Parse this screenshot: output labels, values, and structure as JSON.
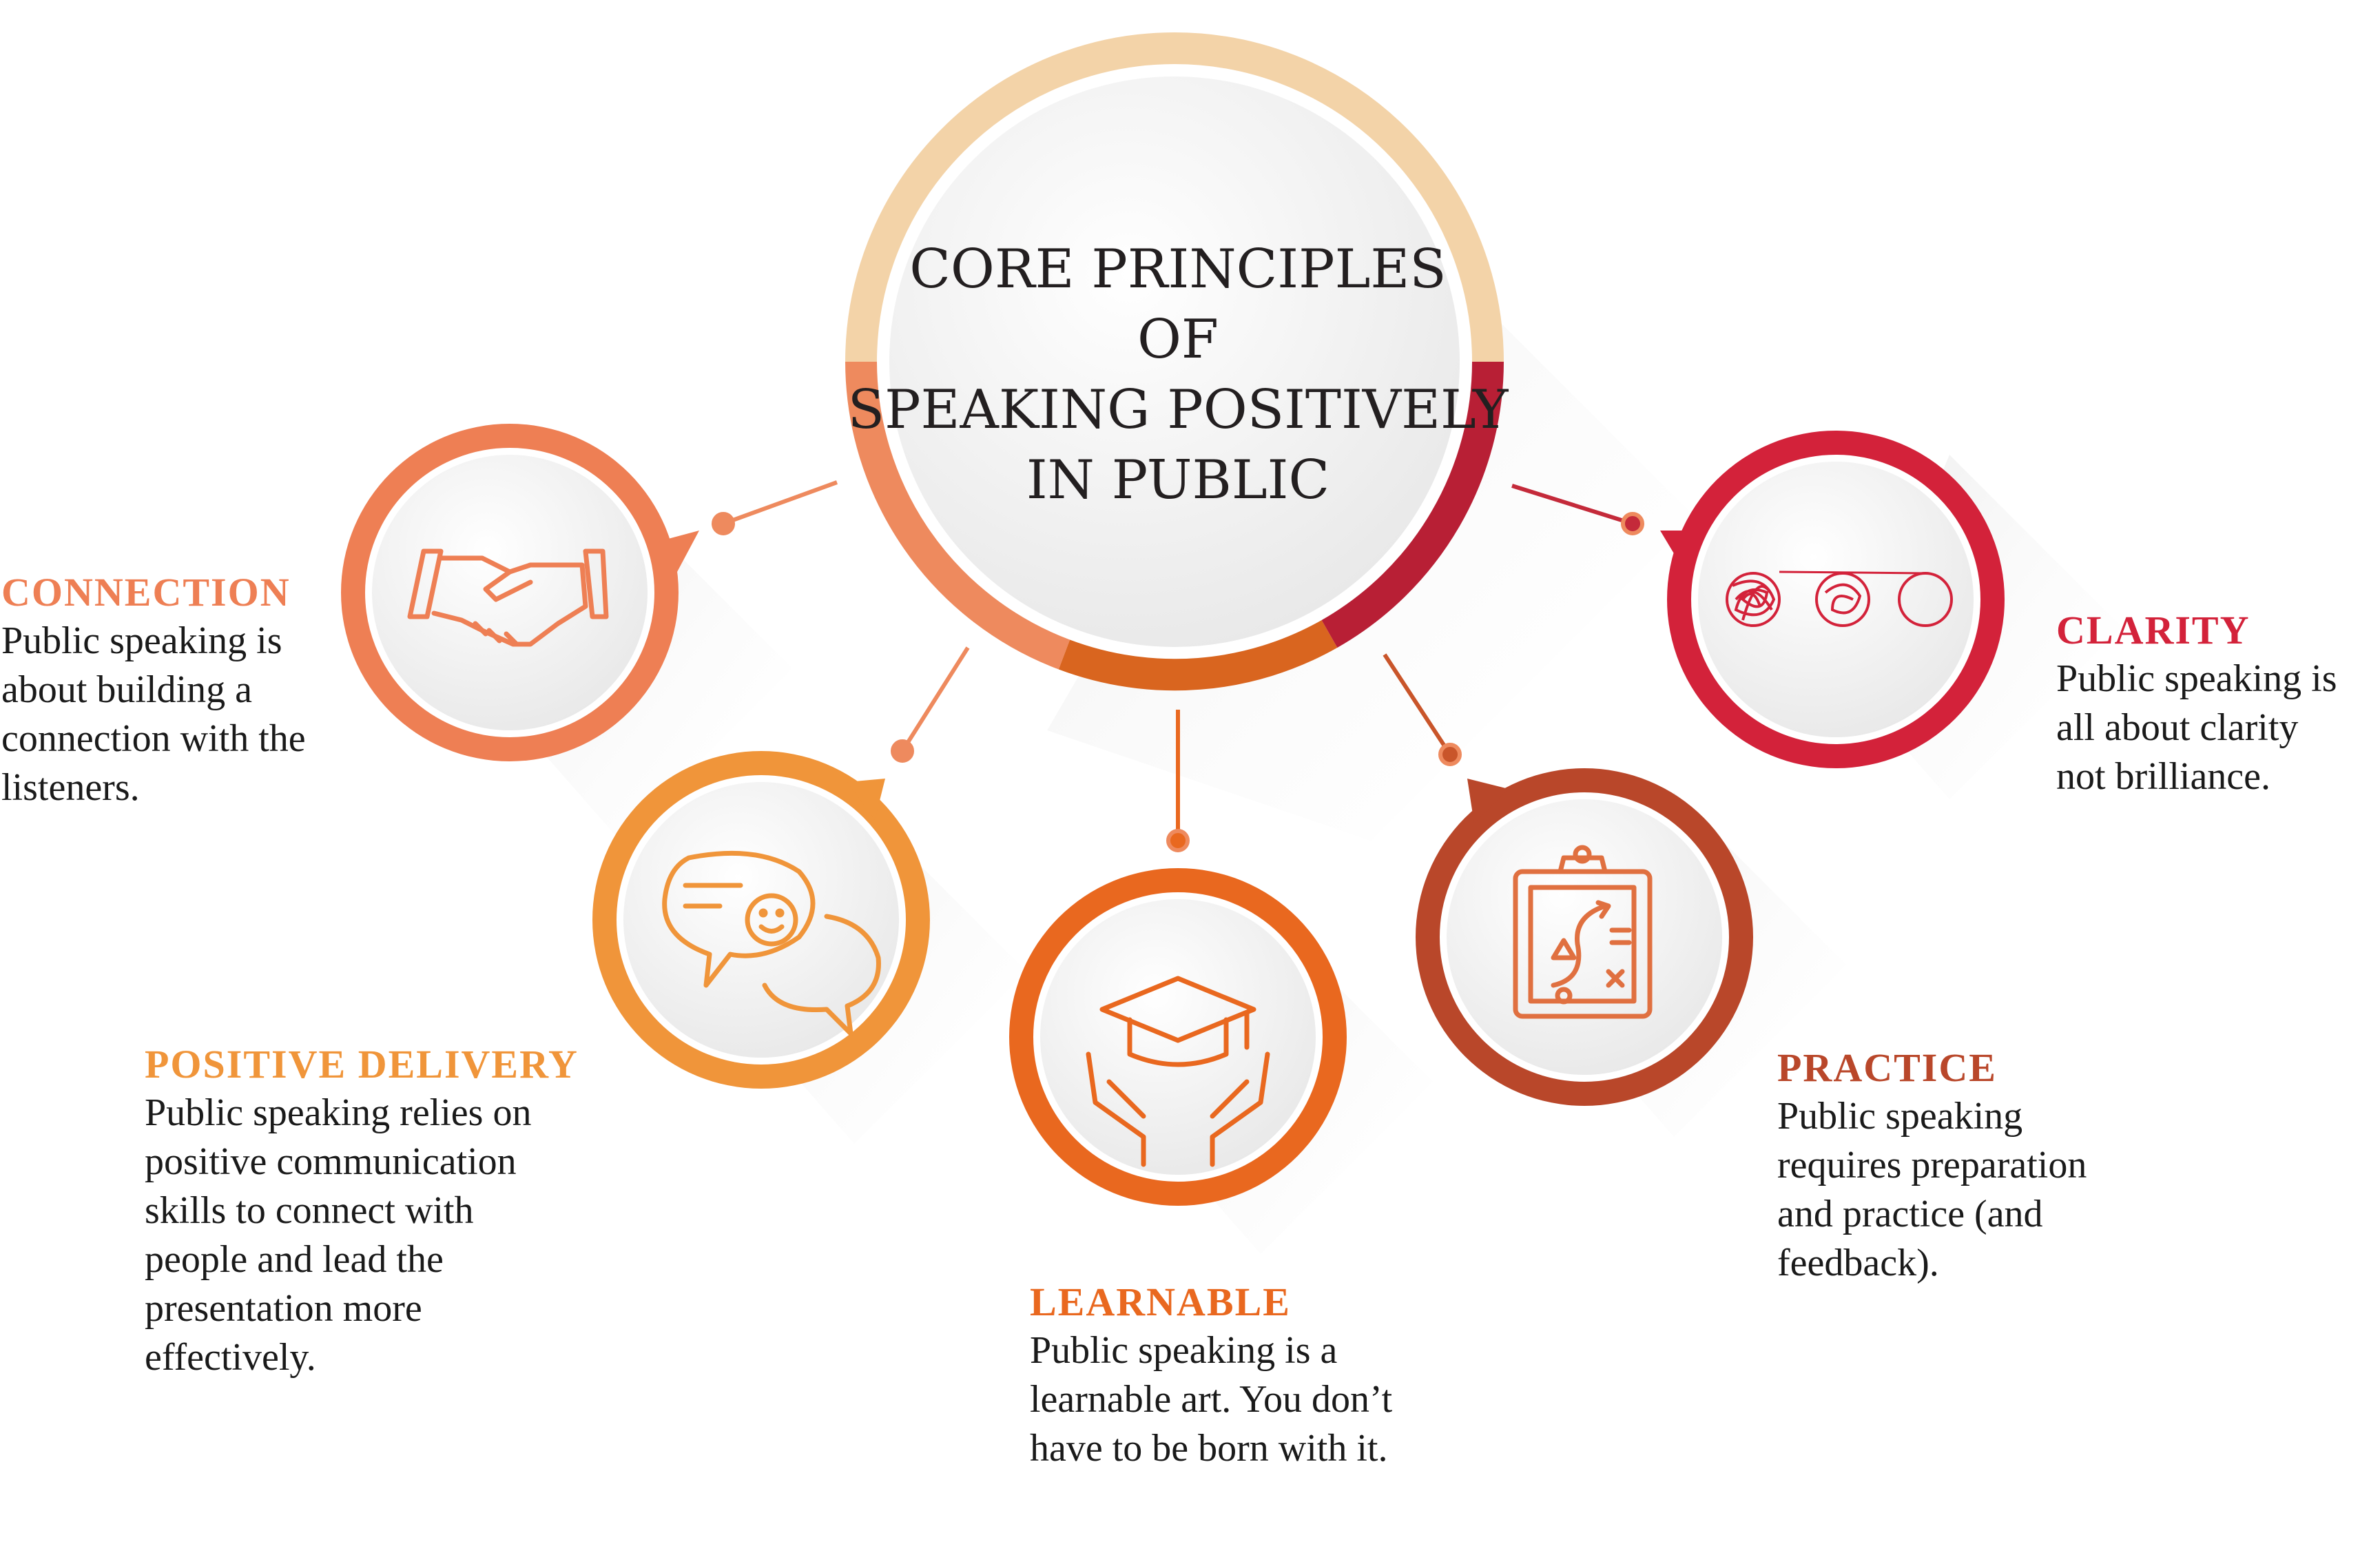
{
  "title": {
    "lines": [
      "CORE PRINCIPLES",
      "OF",
      "SPEAKING POSITIVELY",
      "IN PUBLIC"
    ]
  },
  "principles": [
    {
      "key": "connection",
      "heading": "CONNECTION",
      "icon": "handshake-icon",
      "color": "#ee7f54",
      "text": "Public speaking is\nabout building a\nconnection with the\nlisteners."
    },
    {
      "key": "positive-delivery",
      "heading": "POSITIVE DELIVERY",
      "icon": "chat-smile-icon",
      "color": "#f0953a",
      "text": "Public speaking relies on\npositive communication\nskills to connect with\npeople and lead the\npresentation more\neffectively."
    },
    {
      "key": "learnable",
      "heading": "LEARNABLE",
      "icon": "graduation-hands-icon",
      "color": "#e9681f",
      "text": "Public speaking is a\nlearnable art. You don’t\nhave to be born with it."
    },
    {
      "key": "practice",
      "heading": "PRACTICE",
      "icon": "strategy-clipboard-icon",
      "color": "#b9472a",
      "text": "Public speaking\nrequires preparation\nand practice (and\nfeedback)."
    },
    {
      "key": "clarity",
      "heading": "CLARITY",
      "icon": "scribble-to-circle-icon",
      "color": "#d3223a",
      "text": "Public speaking is\nall about clarity\nnot brilliance."
    }
  ],
  "colors": {
    "ring_top": "#f3d3a8",
    "ring_left": "#ee8a5e",
    "ring_bottom": "#d9651f",
    "ring_right": "#b81f35",
    "inner_fill": "#f1f1f1",
    "connector": "#ee8a5e",
    "title_text": "#231f20"
  }
}
